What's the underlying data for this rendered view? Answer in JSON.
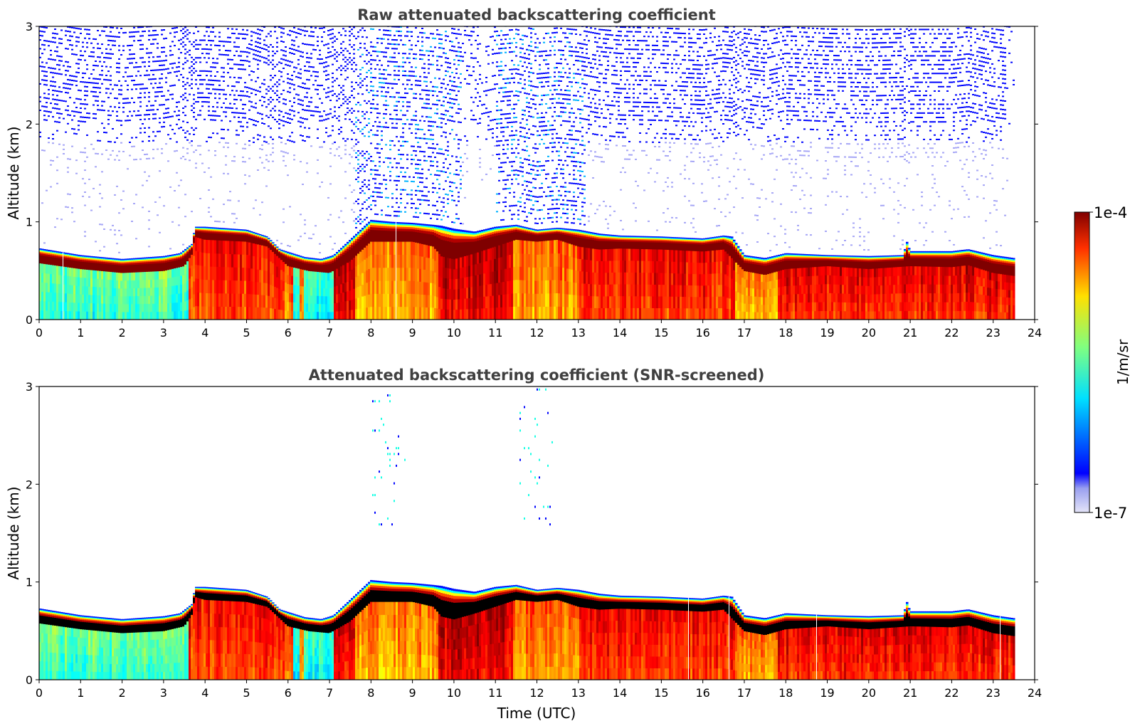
{
  "chart_data": [
    {
      "type": "heatmap",
      "title": "Raw attenuated backscattering coefficient",
      "xlabel": "",
      "ylabel": "Altitude (km)",
      "xlim": [
        0,
        24
      ],
      "ylim": [
        0,
        3
      ],
      "x_ticks": [
        "0",
        "1",
        "2",
        "3",
        "4",
        "5",
        "6",
        "7",
        "8",
        "9",
        "10",
        "11",
        "12",
        "13",
        "14",
        "15",
        "16",
        "17",
        "18",
        "19",
        "20",
        "21",
        "22",
        "23",
        "24"
      ],
      "y_ticks": [
        "0",
        "1",
        "2",
        "3"
      ],
      "data_end_time": 23.5,
      "colorbar_log_range": [
        -7,
        -4
      ],
      "layer_top_km": [
        [
          0,
          0.73
        ],
        [
          1,
          0.66
        ],
        [
          2,
          0.62
        ],
        [
          3,
          0.65
        ],
        [
          3.4,
          0.68
        ],
        [
          3.7,
          0.78
        ],
        [
          3.75,
          0.95
        ],
        [
          4,
          0.95
        ],
        [
          5,
          0.92
        ],
        [
          5.5,
          0.85
        ],
        [
          5.8,
          0.72
        ],
        [
          6.1,
          0.68
        ],
        [
          6.4,
          0.64
        ],
        [
          6.8,
          0.62
        ],
        [
          7.1,
          0.66
        ],
        [
          7.5,
          0.82
        ],
        [
          8,
          1.02
        ],
        [
          8.5,
          1.0
        ],
        [
          9,
          0.99
        ],
        [
          9.5,
          0.97
        ],
        [
          9.7,
          0.96
        ],
        [
          10,
          0.93
        ],
        [
          10.5,
          0.9
        ],
        [
          11,
          0.95
        ],
        [
          11.5,
          0.97
        ],
        [
          12,
          0.92
        ],
        [
          12.5,
          0.94
        ],
        [
          13,
          0.92
        ],
        [
          13.5,
          0.88
        ],
        [
          14,
          0.86
        ],
        [
          15,
          0.85
        ],
        [
          16,
          0.83
        ],
        [
          16.5,
          0.86
        ],
        [
          16.7,
          0.85
        ],
        [
          17,
          0.66
        ],
        [
          17.5,
          0.63
        ],
        [
          18,
          0.68
        ],
        [
          19,
          0.66
        ],
        [
          20,
          0.65
        ],
        [
          20.85,
          0.66
        ],
        [
          20.9,
          0.82
        ],
        [
          21,
          0.7
        ],
        [
          22,
          0.7
        ],
        [
          22.4,
          0.72
        ],
        [
          23,
          0.66
        ],
        [
          23.5,
          0.63
        ]
      ],
      "layer_base_km": [
        [
          0,
          0.58
        ],
        [
          1,
          0.52
        ],
        [
          2,
          0.48
        ],
        [
          3,
          0.5
        ],
        [
          3.5,
          0.55
        ],
        [
          3.7,
          0.68
        ],
        [
          3.75,
          0.85
        ],
        [
          4,
          0.82
        ],
        [
          5,
          0.8
        ],
        [
          5.5,
          0.75
        ],
        [
          6,
          0.55
        ],
        [
          6.5,
          0.5
        ],
        [
          7,
          0.48
        ],
        [
          7.5,
          0.6
        ],
        [
          8,
          0.8
        ],
        [
          9,
          0.8
        ],
        [
          9.5,
          0.75
        ],
        [
          9.7,
          0.65
        ],
        [
          10,
          0.62
        ],
        [
          10.5,
          0.68
        ],
        [
          11,
          0.75
        ],
        [
          11.5,
          0.82
        ],
        [
          12,
          0.8
        ],
        [
          12.5,
          0.82
        ],
        [
          13,
          0.75
        ],
        [
          13.5,
          0.72
        ],
        [
          14,
          0.73
        ],
        [
          15,
          0.72
        ],
        [
          16,
          0.7
        ],
        [
          16.5,
          0.72
        ],
        [
          17,
          0.5
        ],
        [
          17.5,
          0.46
        ],
        [
          18,
          0.52
        ],
        [
          19,
          0.55
        ],
        [
          20,
          0.52
        ],
        [
          21,
          0.55
        ],
        [
          22,
          0.54
        ],
        [
          22.4,
          0.56
        ],
        [
          23,
          0.48
        ],
        [
          23.5,
          0.45
        ]
      ]
    },
    {
      "type": "heatmap",
      "title": "Attenuated backscattering coefficient (SNR-screened)",
      "xlabel": "Time (UTC)",
      "ylabel": "Altitude (km)",
      "xlim": [
        0,
        24
      ],
      "ylim": [
        0,
        3
      ],
      "x_ticks": [
        "0",
        "1",
        "2",
        "3",
        "4",
        "5",
        "6",
        "7",
        "8",
        "9",
        "10",
        "11",
        "12",
        "13",
        "14",
        "15",
        "16",
        "17",
        "18",
        "19",
        "20",
        "21",
        "22",
        "23",
        "24"
      ],
      "y_ticks": [
        "0",
        "1",
        "2",
        "3"
      ],
      "data_end_time": 23.5,
      "colorbar_log_range": [
        -7,
        -4
      ],
      "saturated_color": "#000000"
    }
  ],
  "colorbar": {
    "label": "1/m/sr",
    "max_label": "1e-4",
    "min_label": "1e-7",
    "colormap": "jet",
    "low_color": "#e4e4f8"
  }
}
